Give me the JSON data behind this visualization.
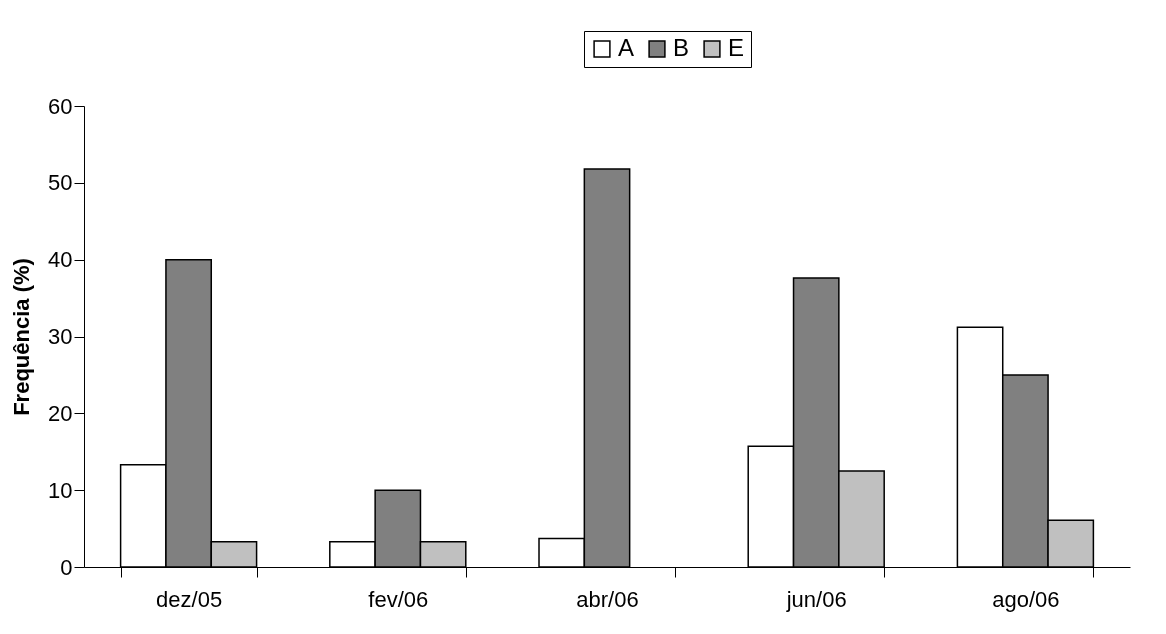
{
  "chart_data": {
    "type": "bar",
    "ylabel": "Frequência (%)",
    "categories": [
      "dez/05",
      "fev/06",
      "abr/06",
      "jun/06",
      "ago/06"
    ],
    "series": [
      {
        "name": "A",
        "color": "#ffffff",
        "values": [
          13.3,
          3.3,
          3.7,
          15.7,
          31.2
        ]
      },
      {
        "name": "B",
        "color": "#808080",
        "values": [
          40,
          10,
          51.8,
          37.6,
          25
        ]
      },
      {
        "name": "E",
        "color": "#c0c0c0",
        "values": [
          3.3,
          3.3,
          0,
          12.5,
          6.1
        ]
      }
    ],
    "ylim": [
      0,
      60
    ],
    "yticks": [
      0,
      10,
      20,
      30,
      40,
      50,
      60
    ],
    "grid": false,
    "legend": "top"
  }
}
